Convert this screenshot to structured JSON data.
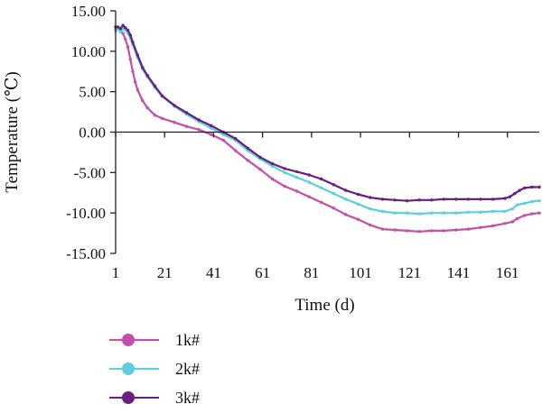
{
  "chart_data": {
    "type": "line",
    "xlabel": "Time (d)",
    "ylabel": "Temperature (℃)",
    "xlim": [
      1,
      174
    ],
    "ylim": [
      -15,
      15
    ],
    "x_ticks": [
      1,
      21,
      41,
      61,
      81,
      101,
      121,
      141,
      161
    ],
    "x_tick_labels": [
      "1",
      "21",
      "41",
      "61",
      "81",
      "101",
      "121",
      "141",
      "161"
    ],
    "y_ticks": [
      15,
      10,
      5,
      0,
      -5,
      -10,
      -15
    ],
    "y_tick_labels": [
      "15.00",
      "10.00",
      "5.00",
      "0.00",
      "-5.00",
      "-10.00",
      "-15.00"
    ],
    "grid": false,
    "legend_position": "bottom-left",
    "series": [
      {
        "name": "1k#",
        "color": "#c44fa8",
        "x": [
          1,
          2,
          3,
          4,
          5,
          6,
          7,
          8,
          9,
          10,
          12,
          14,
          17,
          20,
          25,
          30,
          35,
          40,
          45,
          50,
          55,
          60,
          65,
          70,
          75,
          80,
          85,
          90,
          95,
          100,
          105,
          110,
          115,
          120,
          125,
          130,
          135,
          140,
          145,
          150,
          155,
          160,
          163,
          165,
          168,
          171,
          174
        ],
        "y": [
          12.7,
          12.9,
          12.6,
          12.2,
          11.5,
          10.5,
          9.0,
          7.5,
          6.2,
          5.2,
          3.9,
          3.0,
          2.1,
          1.7,
          1.2,
          0.7,
          0.3,
          -0.3,
          -1.0,
          -2.3,
          -3.5,
          -4.6,
          -5.8,
          -6.7,
          -7.3,
          -8.0,
          -8.7,
          -9.4,
          -10.2,
          -10.8,
          -11.5,
          -12.0,
          -12.1,
          -12.2,
          -12.3,
          -12.2,
          -12.2,
          -12.1,
          -12.0,
          -11.8,
          -11.6,
          -11.3,
          -11.1,
          -10.7,
          -10.3,
          -10.1,
          -10.0
        ]
      },
      {
        "name": "2k#",
        "color": "#5ccfdc",
        "x": [
          1,
          2,
          3,
          4,
          5,
          6,
          7,
          8,
          10,
          12,
          14,
          17,
          20,
          25,
          30,
          35,
          40,
          45,
          50,
          55,
          60,
          65,
          70,
          75,
          80,
          85,
          90,
          95,
          100,
          105,
          110,
          115,
          120,
          125,
          130,
          135,
          140,
          145,
          150,
          155,
          160,
          163,
          165,
          168,
          171,
          174
        ],
        "y": [
          12.5,
          12.8,
          12.4,
          12.8,
          12.6,
          12.2,
          11.6,
          10.8,
          9.2,
          7.8,
          6.8,
          5.5,
          4.4,
          3.2,
          2.2,
          1.3,
          0.5,
          -0.3,
          -1.0,
          -2.3,
          -3.3,
          -4.2,
          -5.0,
          -5.6,
          -6.2,
          -6.9,
          -7.6,
          -8.3,
          -8.9,
          -9.5,
          -9.8,
          -10.0,
          -10.0,
          -10.1,
          -10.0,
          -10.0,
          -10.0,
          -9.9,
          -9.9,
          -9.8,
          -9.8,
          -9.5,
          -9.0,
          -8.8,
          -8.6,
          -8.5
        ]
      },
      {
        "name": "3k#",
        "color": "#6a1e7e",
        "x": [
          1,
          2,
          3,
          4,
          5,
          6,
          7,
          8,
          10,
          12,
          14,
          17,
          20,
          25,
          30,
          35,
          40,
          45,
          50,
          55,
          60,
          65,
          70,
          75,
          80,
          85,
          90,
          95,
          100,
          105,
          110,
          115,
          120,
          125,
          130,
          135,
          140,
          145,
          150,
          155,
          160,
          162,
          164,
          166,
          168,
          171,
          174
        ],
        "y": [
          13.0,
          13.0,
          12.8,
          13.2,
          12.9,
          12.6,
          12.0,
          11.1,
          9.5,
          8.0,
          7.0,
          5.7,
          4.5,
          3.3,
          2.4,
          1.5,
          0.8,
          0.0,
          -0.8,
          -2.0,
          -3.1,
          -3.9,
          -4.5,
          -4.9,
          -5.3,
          -5.8,
          -6.5,
          -7.2,
          -7.7,
          -8.1,
          -8.3,
          -8.4,
          -8.5,
          -8.4,
          -8.4,
          -8.3,
          -8.3,
          -8.3,
          -8.3,
          -8.3,
          -8.2,
          -8.0,
          -7.6,
          -7.2,
          -6.9,
          -6.8,
          -6.8
        ]
      }
    ]
  }
}
